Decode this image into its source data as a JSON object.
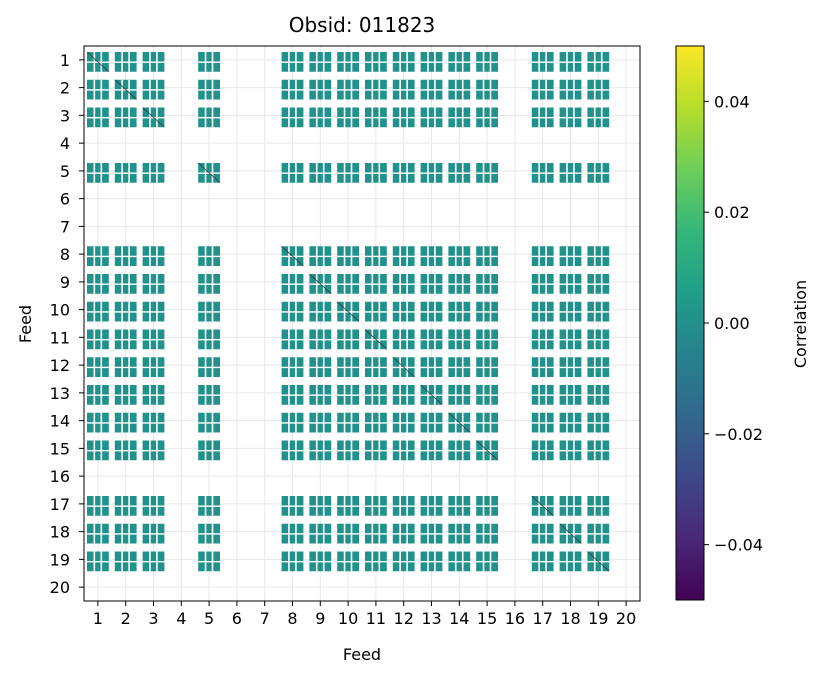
{
  "chart_data": {
    "type": "heatmap",
    "title": "Obsid: 011823",
    "xlabel": "Feed",
    "ylabel": "Feed",
    "feeds": [
      1,
      2,
      3,
      4,
      5,
      6,
      7,
      8,
      9,
      10,
      11,
      12,
      13,
      14,
      15,
      16,
      17,
      18,
      19,
      20
    ],
    "x_ticks": [
      "1",
      "2",
      "3",
      "4",
      "5",
      "6",
      "7",
      "8",
      "9",
      "10",
      "11",
      "12",
      "13",
      "14",
      "15",
      "16",
      "17",
      "18",
      "19",
      "20"
    ],
    "y_ticks": [
      "1",
      "2",
      "3",
      "4",
      "5",
      "6",
      "7",
      "8",
      "9",
      "10",
      "11",
      "12",
      "13",
      "14",
      "15",
      "16",
      "17",
      "18",
      "19",
      "20"
    ],
    "active_feeds": [
      1,
      2,
      3,
      5,
      8,
      9,
      10,
      11,
      12,
      13,
      14,
      15,
      17,
      18,
      19
    ],
    "inactive_feeds": [
      4,
      6,
      7,
      16,
      20
    ],
    "block_value": 0.0,
    "colorbar": {
      "label": "Correlation",
      "colormap": "viridis",
      "vmin": -0.05,
      "vmax": 0.05,
      "ticks": [
        -0.04,
        -0.02,
        0.0,
        0.02,
        0.04
      ],
      "tick_labels": [
        "−0.04",
        "−0.02",
        "0.00",
        "0.02",
        "0.04"
      ]
    },
    "grid": true,
    "colors": {
      "cell": "#21918c",
      "grid": "#e8e8e8",
      "viridis": [
        "#440154",
        "#482878",
        "#3e4989",
        "#31688e",
        "#26828e",
        "#1f9e89",
        "#35b779",
        "#6ece58",
        "#b5de2b",
        "#fde725"
      ]
    }
  }
}
